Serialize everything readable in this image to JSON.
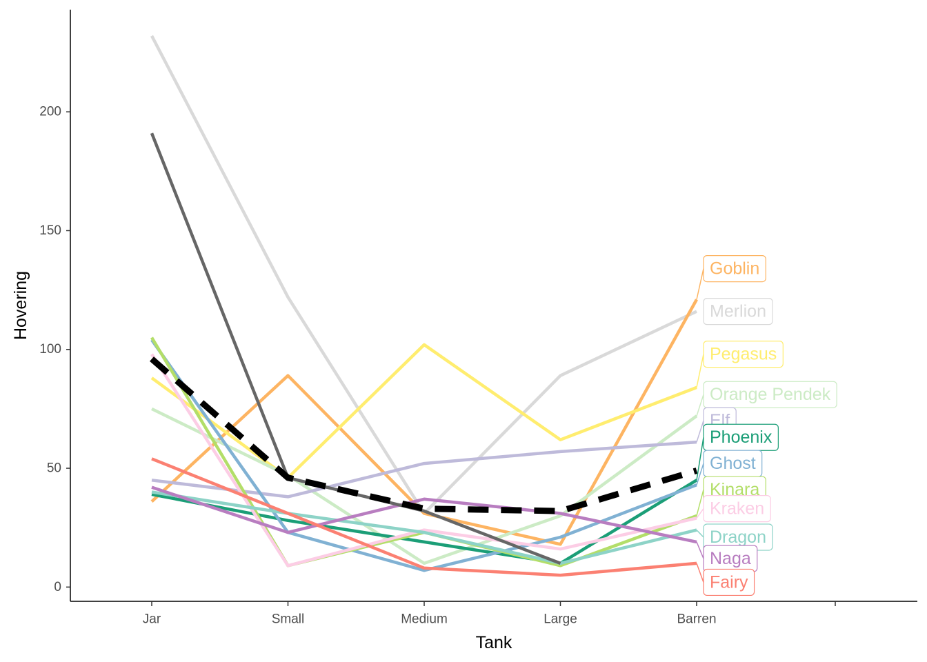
{
  "chart_data": {
    "type": "line",
    "xlabel": "Tank",
    "ylabel": "Hovering",
    "categories": [
      "Jar",
      "Small",
      "Medium",
      "Large",
      "Barren"
    ],
    "ylim": [
      -6,
      243
    ],
    "yticks": [
      0,
      50,
      100,
      150,
      200
    ],
    "grid": false,
    "legend": "none",
    "series": [
      {
        "name": "Merlion",
        "color": "#d9d9d9",
        "values": [
          232,
          122,
          31,
          89,
          116
        ],
        "label_y": 116
      },
      {
        "name": "Goblin",
        "color": "#fdb462",
        "values": [
          36,
          89,
          31,
          18,
          121
        ],
        "label_y": 134
      },
      {
        "name": "Pegasus",
        "color": "#ffed6f",
        "values": [
          88,
          46,
          102,
          62,
          84
        ],
        "label_y": 98
      },
      {
        "name": "Orange Pendek",
        "color": "#ccebc5",
        "values": [
          75,
          47,
          10,
          30,
          72
        ],
        "label_y": 81
      },
      {
        "name": "Elf",
        "color": "#bebada",
        "values": [
          45,
          38,
          52,
          57,
          61
        ],
        "label_y": 70
      },
      {
        "name": "Phoenix",
        "color": "#1b9e77",
        "values": [
          39,
          28,
          19,
          10,
          45
        ],
        "label_y": 63
      },
      {
        "name": "Ghost",
        "color": "#80b1d3",
        "values": [
          104,
          23,
          7,
          21,
          43
        ],
        "label_y": 52
      },
      {
        "name": "Kinara",
        "color": "#b3de69",
        "values": [
          105,
          9,
          23,
          9,
          30
        ],
        "label_y": 41
      },
      {
        "name": "Kraken",
        "color": "#fccde5",
        "values": [
          98,
          9,
          24,
          16,
          29
        ],
        "label_y": 33
      },
      {
        "name": "Dragon",
        "color": "#8dd3c7",
        "values": [
          40,
          31,
          23,
          10,
          24
        ],
        "label_y": 21
      },
      {
        "name": "Naga",
        "color": "#b87dc0",
        "values": [
          42,
          23,
          37,
          31,
          19
        ],
        "label_y": 12
      },
      {
        "name": "Fairy",
        "color": "#fb8072",
        "values": [
          54,
          31,
          8,
          5,
          10
        ],
        "label_y": 2
      },
      {
        "name": "",
        "color": "#666666",
        "values": [
          191,
          46,
          32,
          10,
          null
        ],
        "label_y": null
      },
      {
        "name": "",
        "color": "#000000",
        "dashed": true,
        "values": [
          96,
          46,
          33,
          32,
          49
        ],
        "label_y": null
      }
    ]
  }
}
